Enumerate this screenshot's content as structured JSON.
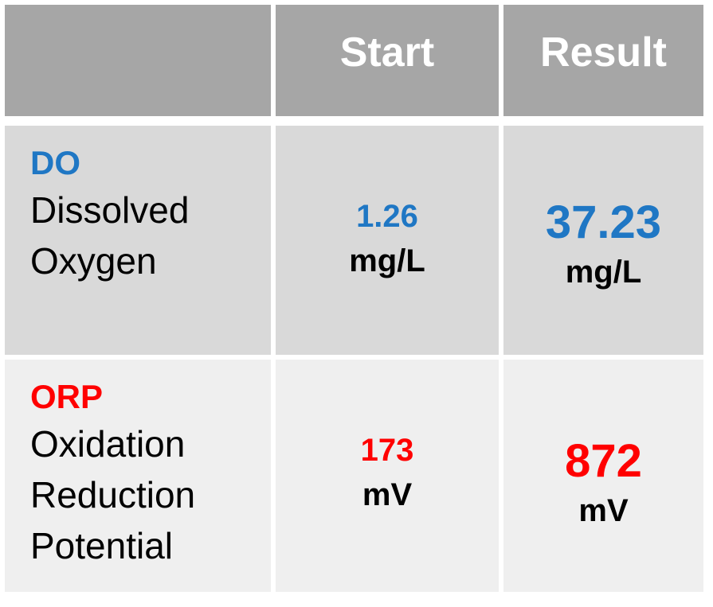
{
  "header": {
    "empty": "",
    "start_label": "Start",
    "result_label": "Result"
  },
  "rows": [
    {
      "abbr": "DO",
      "description_lines": [
        "Dissolved",
        "Oxygen"
      ],
      "start_value": "1.26",
      "start_unit": "mg/L",
      "result_value": "37.23",
      "result_unit": "mg/L",
      "accent_color": "#1f77c4"
    },
    {
      "abbr": "ORP",
      "description_lines": [
        "Oxidation",
        "Reduction",
        "Potential"
      ],
      "start_value": "173",
      "start_unit": "mV",
      "result_value": "872",
      "result_unit": "mV",
      "accent_color": "#ff0000"
    }
  ],
  "colors": {
    "header_bg": "#a6a6a6",
    "row1_bg": "#d9d9d9",
    "row2_bg": "#efefef"
  }
}
